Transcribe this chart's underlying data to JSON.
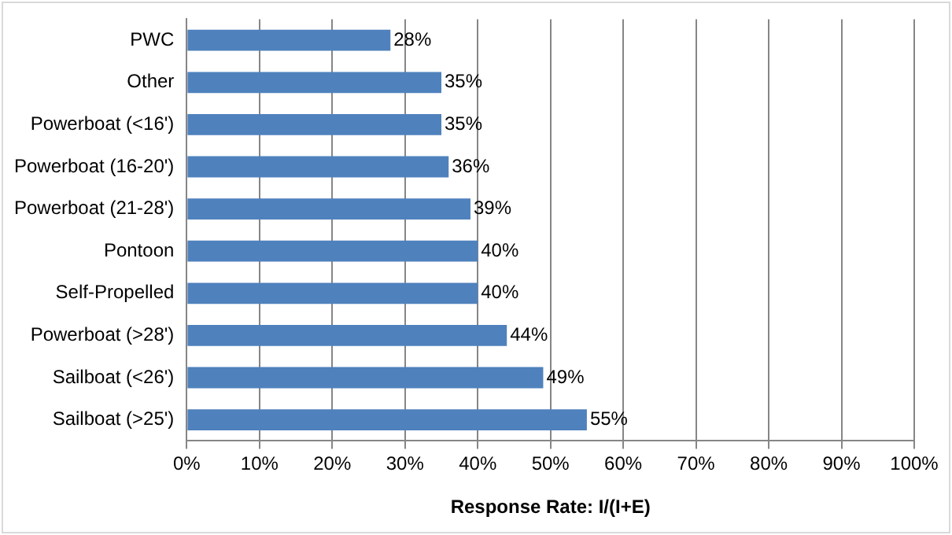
{
  "chart_data": {
    "type": "bar",
    "orientation": "horizontal",
    "xlabel": "Response Rate: I/(I+E)",
    "categories": [
      "PWC",
      "Other",
      "Powerboat (<16')",
      "Powerboat (16-20')",
      "Powerboat (21-28')",
      "Pontoon",
      "Self-Propelled",
      "Powerboat (>28')",
      "Sailboat (<26')",
      "Sailboat (>25')"
    ],
    "values": [
      28,
      35,
      35,
      36,
      39,
      40,
      40,
      44,
      49,
      55
    ],
    "value_labels": [
      "28%",
      "35%",
      "35%",
      "36%",
      "39%",
      "40%",
      "40%",
      "44%",
      "49%",
      "55%"
    ],
    "color": "#4f81bd",
    "xlim": [
      0,
      100
    ],
    "xticks": [
      {
        "value": 0,
        "label": "0%"
      },
      {
        "value": 10,
        "label": "10%"
      },
      {
        "value": 20,
        "label": "20%"
      },
      {
        "value": 30,
        "label": "30%"
      },
      {
        "value": 40,
        "label": "40%"
      },
      {
        "value": 50,
        "label": "50%"
      },
      {
        "value": 60,
        "label": "60%"
      },
      {
        "value": 70,
        "label": "70%"
      },
      {
        "value": 80,
        "label": "80%"
      },
      {
        "value": 90,
        "label": "90%"
      },
      {
        "value": 100,
        "label": "100%"
      }
    ],
    "grid": "x",
    "legend": false
  }
}
